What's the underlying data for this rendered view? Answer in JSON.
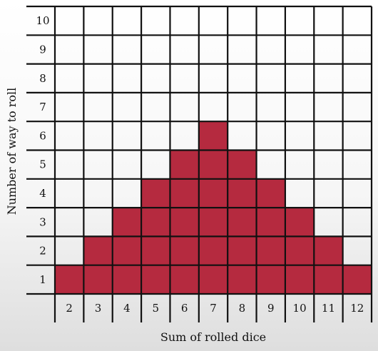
{
  "chart_data": {
    "type": "bar",
    "title": "",
    "xlabel": "Sum of rolled dice",
    "ylabel": "Number of way to roll",
    "categories": [
      "2",
      "3",
      "4",
      "5",
      "6",
      "7",
      "8",
      "9",
      "10",
      "11",
      "12"
    ],
    "values": [
      1,
      2,
      3,
      4,
      5,
      6,
      5,
      4,
      3,
      2,
      1
    ],
    "y_ticks": [
      "1",
      "2",
      "3",
      "4",
      "5",
      "6",
      "7",
      "8",
      "9",
      "10"
    ],
    "ylim": [
      0,
      10
    ],
    "grid": true,
    "bar_color": "#b52a3f",
    "grid_color": "#111111"
  }
}
